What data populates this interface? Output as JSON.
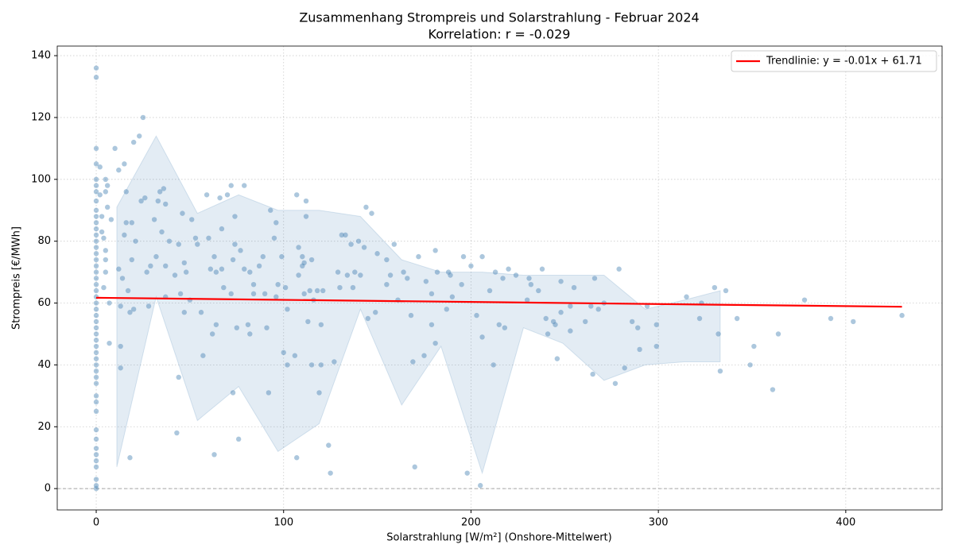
{
  "chart_data": {
    "type": "scatter",
    "title": "Zusammenhang Strompreis und Solarstrahlung - Februar 2024",
    "subtitle": "Korrelation: r = -0.029",
    "x_label": "Solarstrahlung [W/m²] (Onshore-Mittelwert)",
    "y_label": "Strompreis [€/MWh]",
    "color": "#4682b4",
    "x": [
      0,
      0,
      0,
      0,
      0,
      0,
      0,
      0,
      0,
      0,
      0,
      0,
      0,
      0,
      0,
      0,
      0,
      0,
      0,
      0,
      0,
      0,
      0,
      0,
      0,
      0,
      0,
      0,
      0,
      0,
      0,
      0,
      0,
      0,
      0,
      0,
      0,
      0,
      0,
      0,
      0,
      0,
      0,
      0,
      0,
      0,
      0,
      0,
      0,
      2,
      2,
      3,
      3,
      4,
      4,
      5,
      5,
      5,
      5,
      5,
      6,
      6,
      7,
      7,
      8,
      10,
      12,
      12,
      13,
      13,
      13,
      14,
      15,
      15,
      16,
      16,
      17,
      18,
      18,
      19,
      19,
      20,
      20,
      21,
      23,
      24,
      25,
      26,
      27,
      28,
      29,
      31,
      32,
      33,
      34,
      35,
      36,
      37,
      37,
      37,
      39,
      42,
      43,
      44,
      44,
      45,
      46,
      47,
      47,
      48,
      50,
      51,
      53,
      54,
      56,
      57,
      59,
      60,
      61,
      62,
      63,
      63,
      64,
      64,
      66,
      67,
      67,
      68,
      70,
      72,
      72,
      73,
      73,
      74,
      74,
      75,
      76,
      77,
      79,
      79,
      81,
      82,
      82,
      84,
      84,
      87,
      89,
      90,
      91,
      92,
      93,
      95,
      96,
      96,
      97,
      99,
      100,
      101,
      102,
      102,
      106,
      107,
      107,
      108,
      108,
      110,
      110,
      111,
      111,
      112,
      112,
      113,
      114,
      115,
      115,
      116,
      118,
      119,
      120,
      120,
      121,
      124,
      125,
      127,
      129,
      130,
      131,
      133,
      134,
      136,
      137,
      138,
      140,
      141,
      143,
      144,
      145,
      147,
      149,
      150,
      155,
      155,
      157,
      159,
      161,
      164,
      166,
      168,
      169,
      170,
      172,
      175,
      176,
      179,
      179,
      181,
      181,
      182,
      187,
      188,
      189,
      190,
      195,
      196,
      198,
      200,
      203,
      205,
      206,
      206,
      210,
      212,
      213,
      215,
      217,
      218,
      220,
      224,
      230,
      231,
      232,
      236,
      238,
      240,
      241,
      244,
      245,
      246,
      248,
      248,
      253,
      253,
      255,
      261,
      264,
      265,
      266,
      268,
      271,
      277,
      279,
      282,
      286,
      289,
      290,
      294,
      299,
      299,
      315,
      322,
      323,
      330,
      332,
      333,
      336,
      342,
      349,
      351,
      361,
      364,
      378,
      392,
      404,
      430
    ],
    "values": [
      136,
      133,
      110,
      105,
      100,
      98,
      96,
      93,
      90,
      88,
      86,
      84,
      82,
      80,
      78,
      76,
      74,
      72,
      70,
      68,
      66,
      64,
      62,
      60,
      58,
      56,
      54,
      52,
      50,
      48,
      46,
      44,
      42,
      40,
      38,
      36,
      34,
      30,
      28,
      25,
      19,
      16,
      13,
      11,
      9,
      7,
      3,
      1,
      0,
      104,
      95,
      88,
      83,
      81,
      65,
      77,
      74,
      70,
      96,
      100,
      91,
      98,
      60,
      47,
      87,
      110,
      71,
      103,
      46,
      39,
      59,
      68,
      105,
      82,
      86,
      96,
      64,
      57,
      10,
      74,
      86,
      58,
      112,
      80,
      114,
      93,
      120,
      94,
      70,
      59,
      72,
      87,
      75,
      93,
      96,
      83,
      97,
      92,
      62,
      72,
      80,
      69,
      18,
      36,
      79,
      63,
      89,
      73,
      57,
      70,
      61,
      87,
      81,
      79,
      57,
      43,
      95,
      81,
      71,
      50,
      11,
      75,
      53,
      70,
      94,
      84,
      71,
      65,
      95,
      98,
      63,
      74,
      31,
      79,
      88,
      52,
      16,
      77,
      98,
      71,
      53,
      50,
      70,
      66,
      63,
      72,
      75,
      63,
      52,
      31,
      90,
      81,
      86,
      62,
      66,
      75,
      44,
      65,
      40,
      58,
      43,
      95,
      10,
      69,
      78,
      72,
      75,
      63,
      73,
      88,
      93,
      54,
      64,
      40,
      74,
      61,
      64,
      31,
      53,
      40,
      64,
      14,
      5,
      41,
      70,
      65,
      82,
      82,
      69,
      79,
      65,
      70,
      80,
      69,
      78,
      91,
      55,
      89,
      57,
      76,
      74,
      66,
      69,
      79,
      61,
      70,
      68,
      56,
      41,
      7,
      75,
      43,
      67,
      63,
      53,
      47,
      77,
      70,
      58,
      70,
      69,
      62,
      66,
      75,
      5,
      72,
      56,
      1,
      49,
      75,
      64,
      40,
      70,
      53,
      68,
      52,
      71,
      69,
      61,
      68,
      66,
      64,
      71,
      55,
      50,
      54,
      53,
      42,
      67,
      57,
      59,
      51,
      65,
      54,
      59,
      37,
      68,
      58,
      60,
      34,
      71,
      39,
      54,
      52,
      45,
      59,
      46,
      53,
      62,
      55,
      60,
      65,
      50,
      38,
      64,
      55,
      40,
      46,
      32,
      50,
      61,
      55,
      54,
      56
    ],
    "band": {
      "color": "#4682b4",
      "x": [
        11,
        32,
        54,
        76,
        97,
        119,
        141,
        163,
        184,
        206,
        228,
        249,
        271,
        293,
        314,
        333
      ],
      "upper": [
        91,
        114,
        89,
        95,
        90,
        90,
        88,
        74,
        70,
        70,
        69,
        69,
        69,
        58,
        61,
        64
      ],
      "lower": [
        7,
        62,
        22,
        33,
        12,
        21,
        58,
        27,
        46,
        5,
        52,
        47,
        35,
        40,
        41,
        41
      ]
    },
    "trend": {
      "name": "Trendlinie: y = -0.01x + 61.71",
      "color": "#ff0000",
      "x": [
        0,
        430
      ],
      "values": [
        61.71,
        58.8
      ]
    },
    "hline": 0,
    "xlim": [
      -20.8,
      451.4
    ],
    "ylim": [
      -6.9,
      143.1
    ],
    "xticks": [
      0,
      100,
      200,
      300,
      400
    ],
    "yticks": [
      0,
      20,
      40,
      60,
      80,
      100,
      120,
      140
    ],
    "grid": true,
    "legend": "upper right"
  }
}
